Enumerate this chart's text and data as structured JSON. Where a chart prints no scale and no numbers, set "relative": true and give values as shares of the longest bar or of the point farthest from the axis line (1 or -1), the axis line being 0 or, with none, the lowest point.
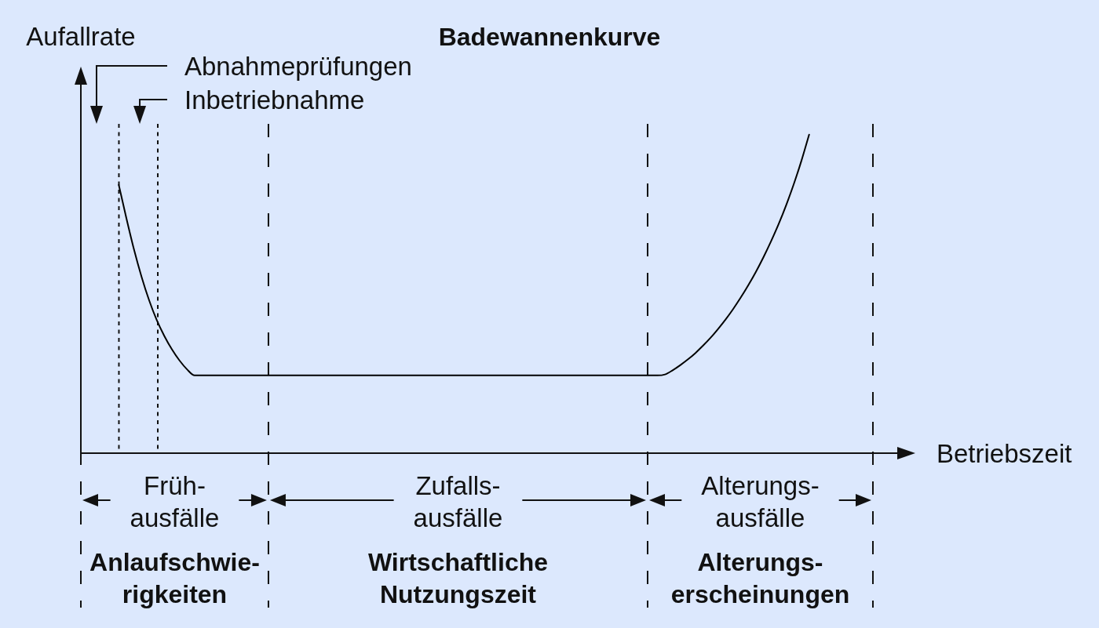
{
  "chart_data": {
    "type": "line",
    "title": "Badewannenkurve",
    "xlabel": "Betriebszeit",
    "ylabel": "Aufallrate",
    "relative": true,
    "categories": [
      null,
      null,
      null,
      null,
      null,
      null,
      null,
      null,
      null,
      null,
      null,
      null,
      null,
      null,
      null,
      null,
      null,
      null,
      null,
      null,
      null,
      null,
      null,
      null,
      null,
      null,
      null,
      null,
      null,
      null,
      null,
      null,
      null,
      null,
      null,
      null,
      null,
      null,
      null,
      null,
      null,
      null,
      null,
      null,
      null,
      null,
      null,
      null,
      null,
      null,
      null,
      null,
      null,
      null,
      null,
      null,
      null,
      null,
      null,
      null,
      null,
      null,
      null,
      null,
      null,
      null,
      null,
      null,
      null,
      null,
      null,
      null,
      null,
      null,
      null,
      null,
      null,
      null,
      null,
      null,
      null,
      null,
      null,
      null,
      null,
      null,
      null,
      null,
      null,
      null,
      null,
      null,
      null,
      null,
      null,
      null,
      null,
      null,
      null,
      null,
      null,
      null,
      null,
      null,
      null,
      null,
      null,
      null,
      null,
      null,
      null
    ],
    "series": [
      {
        "color": "#000000",
        "values": [
          null,
          null,
          null,
          null,
          null,
          0.842,
          0.738,
          0.64,
          0.554,
          0.48,
          0.418,
          0.368,
          0.326,
          0.291,
          0.263,
          0.244,
          0.244,
          0.244,
          0.244,
          0.244,
          0.244,
          0.244,
          0.244,
          0.244,
          0.244,
          0.244,
          0.244,
          0.244,
          0.244,
          0.244,
          0.244,
          0.244,
          0.244,
          0.244,
          0.244,
          0.244,
          0.244,
          0.244,
          0.244,
          0.244,
          0.244,
          0.244,
          0.244,
          0.244,
          0.244,
          0.244,
          0.244,
          0.244,
          0.244,
          0.244,
          0.244,
          0.244,
          0.244,
          0.244,
          0.244,
          0.244,
          0.244,
          0.244,
          0.244,
          0.244,
          0.244,
          0.244,
          0.244,
          0.244,
          0.244,
          0.244,
          0.244,
          0.244,
          0.244,
          0.244,
          0.244,
          0.244,
          0.244,
          0.244,
          0.244,
          0.244,
          0.244,
          0.247,
          0.26,
          0.276,
          0.294,
          0.314,
          0.337,
          0.362,
          0.39,
          0.42,
          0.453,
          0.489,
          0.528,
          0.57,
          0.616,
          0.666,
          0.72,
          0.78,
          0.846,
          0.919,
          1,
          null,
          null,
          null,
          null,
          null,
          null,
          null,
          null,
          null,
          null,
          null,
          null,
          null,
          null
        ]
      }
    ],
    "annotations": [
      "Abnahmeprüfungen",
      "Inbetriebnahme",
      "Früh-\nausfälle",
      "Zufalls-\nausfälle",
      "Alterungs-\nausfälle",
      "Anlaufschwie-\nrigkeiten",
      "Wirtschaftliche\nNutzungszeit",
      "Alterungs-\nerscheinungen"
    ]
  }
}
